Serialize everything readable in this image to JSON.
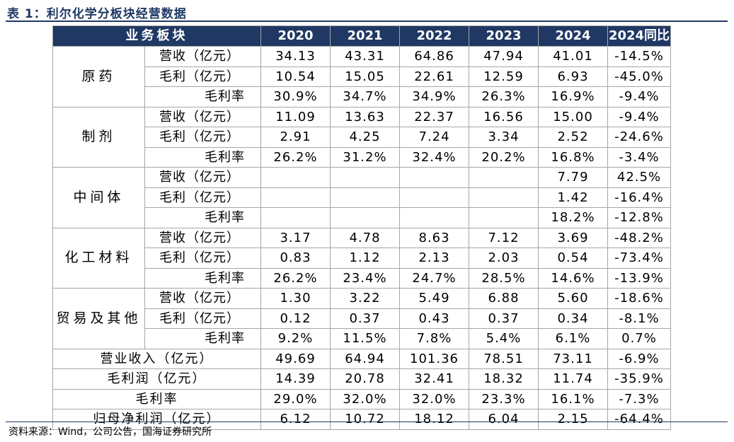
{
  "title": "表 1：利尔化学分板块经营数据",
  "header": {
    "segment": "业务板块",
    "years": [
      "2020",
      "2021",
      "2022",
      "2023",
      "2024",
      "2024同比"
    ]
  },
  "segments": [
    {
      "name": "原药",
      "rows": [
        {
          "metric": "营收（亿元）",
          "values": [
            "34.13",
            "43.31",
            "64.86",
            "47.94",
            "41.01",
            "-14.5%"
          ]
        },
        {
          "metric": "毛利（亿元）",
          "values": [
            "10.54",
            "15.05",
            "22.61",
            "12.59",
            "6.93",
            "-45.0%"
          ]
        },
        {
          "metric": "毛利率",
          "values": [
            "30.9%",
            "34.7%",
            "34.9%",
            "26.3%",
            "16.9%",
            "-9.4%"
          ]
        }
      ]
    },
    {
      "name": "制剂",
      "rows": [
        {
          "metric": "营收（亿元）",
          "values": [
            "11.09",
            "13.63",
            "22.37",
            "16.56",
            "15.00",
            "-9.4%"
          ]
        },
        {
          "metric": "毛利（亿元）",
          "values": [
            "2.91",
            "4.25",
            "7.24",
            "3.34",
            "2.52",
            "-24.6%"
          ]
        },
        {
          "metric": "毛利率",
          "values": [
            "26.2%",
            "31.2%",
            "32.4%",
            "20.2%",
            "16.8%",
            "-3.4%"
          ]
        }
      ]
    },
    {
      "name": "中间体",
      "rows": [
        {
          "metric": "营收（亿元）",
          "values": [
            "",
            "",
            "",
            "",
            "7.79",
            "42.5%"
          ]
        },
        {
          "metric": "毛利（亿元）",
          "values": [
            "",
            "",
            "",
            "",
            "1.42",
            "-16.4%"
          ]
        },
        {
          "metric": "毛利率",
          "values": [
            "",
            "",
            "",
            "",
            "18.2%",
            "-12.8%"
          ]
        }
      ]
    },
    {
      "name": "化工材料",
      "rows": [
        {
          "metric": "营收（亿元）",
          "values": [
            "3.17",
            "4.78",
            "8.63",
            "7.12",
            "3.69",
            "-48.2%"
          ]
        },
        {
          "metric": "毛利（亿元）",
          "values": [
            "0.83",
            "1.12",
            "2.13",
            "2.03",
            "0.54",
            "-73.4%"
          ]
        },
        {
          "metric": "毛利率",
          "values": [
            "26.2%",
            "23.4%",
            "24.7%",
            "28.5%",
            "14.6%",
            "-13.9%"
          ]
        }
      ]
    },
    {
      "name": "贸易及其他",
      "rows": [
        {
          "metric": "营收（亿元）",
          "values": [
            "1.30",
            "3.22",
            "5.49",
            "6.88",
            "5.60",
            "-18.6%"
          ]
        },
        {
          "metric": "毛利（亿元）",
          "values": [
            "0.12",
            "0.37",
            "0.43",
            "0.37",
            "0.34",
            "-8.1%"
          ]
        },
        {
          "metric": "毛利率",
          "values": [
            "9.2%",
            "11.5%",
            "7.8%",
            "5.4%",
            "6.1%",
            "0.7%"
          ]
        }
      ]
    }
  ],
  "totals": [
    {
      "label": "营业收入（亿元）",
      "values": [
        "49.69",
        "64.94",
        "101.36",
        "78.51",
        "73.11",
        "-6.9%"
      ]
    },
    {
      "label": "毛利润（亿元）",
      "values": [
        "14.39",
        "20.78",
        "32.41",
        "18.32",
        "11.74",
        "-35.9%"
      ]
    },
    {
      "label": "毛利率",
      "values": [
        "29.0%",
        "32.0%",
        "32.0%",
        "23.3%",
        "16.1%",
        "-7.3%"
      ]
    },
    {
      "label": "归母净利润（亿元）",
      "values": [
        "6.12",
        "10.72",
        "18.12",
        "6.04",
        "2.15",
        "-64.4%"
      ]
    }
  ],
  "source": "资料来源：Wind，公司公告，国海证券研究所"
}
